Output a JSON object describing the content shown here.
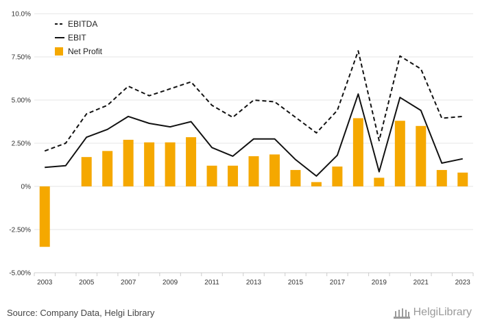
{
  "chart_data": {
    "type": "bar+line",
    "categories": [
      "2003",
      "2004",
      "2005",
      "2006",
      "2007",
      "2008",
      "2009",
      "2010",
      "2011",
      "2012",
      "2013",
      "2014",
      "2015",
      "2016",
      "2017",
      "2018",
      "2019",
      "2020",
      "2021",
      "2022",
      "2023"
    ],
    "x_tick_labels": [
      "2003",
      "2005",
      "2007",
      "2009",
      "2011",
      "2013",
      "2015",
      "2017",
      "2019",
      "2021",
      "2023"
    ],
    "y_ticks": [
      "10.0%",
      "7.50%",
      "5.00%",
      "2.50%",
      "0%",
      "-2.50%",
      "-5.00%"
    ],
    "ylim": [
      -5,
      10
    ],
    "grid": true,
    "legend_position": "top-left",
    "series": [
      {
        "name": "EBITDA",
        "type": "line",
        "style": "dashed",
        "color": "#111111",
        "values": [
          2.05,
          2.5,
          4.2,
          4.7,
          5.8,
          5.25,
          5.65,
          6.05,
          4.7,
          4.0,
          5.0,
          4.9,
          4.0,
          3.1,
          4.4,
          7.85,
          2.65,
          7.55,
          6.8,
          3.95,
          4.05
        ]
      },
      {
        "name": "EBIT",
        "type": "line",
        "style": "solid",
        "color": "#111111",
        "values": [
          1.1,
          1.2,
          2.85,
          3.3,
          4.05,
          3.65,
          3.45,
          3.75,
          2.25,
          1.75,
          2.75,
          2.75,
          1.55,
          0.6,
          1.8,
          5.35,
          0.85,
          5.15,
          4.4,
          1.35,
          1.6
        ]
      },
      {
        "name": "Net Profit",
        "type": "bar",
        "color": "#f5a800",
        "values": [
          -3.5,
          0,
          1.7,
          2.05,
          2.7,
          2.55,
          2.55,
          2.85,
          1.2,
          1.2,
          1.75,
          1.85,
          0.95,
          0.25,
          1.15,
          3.95,
          0.5,
          3.8,
          3.5,
          0.95,
          0.8
        ]
      }
    ]
  },
  "footer": {
    "source_text": "Source: Company Data, Helgi Library",
    "brand_text": "HelgiLibrary"
  }
}
